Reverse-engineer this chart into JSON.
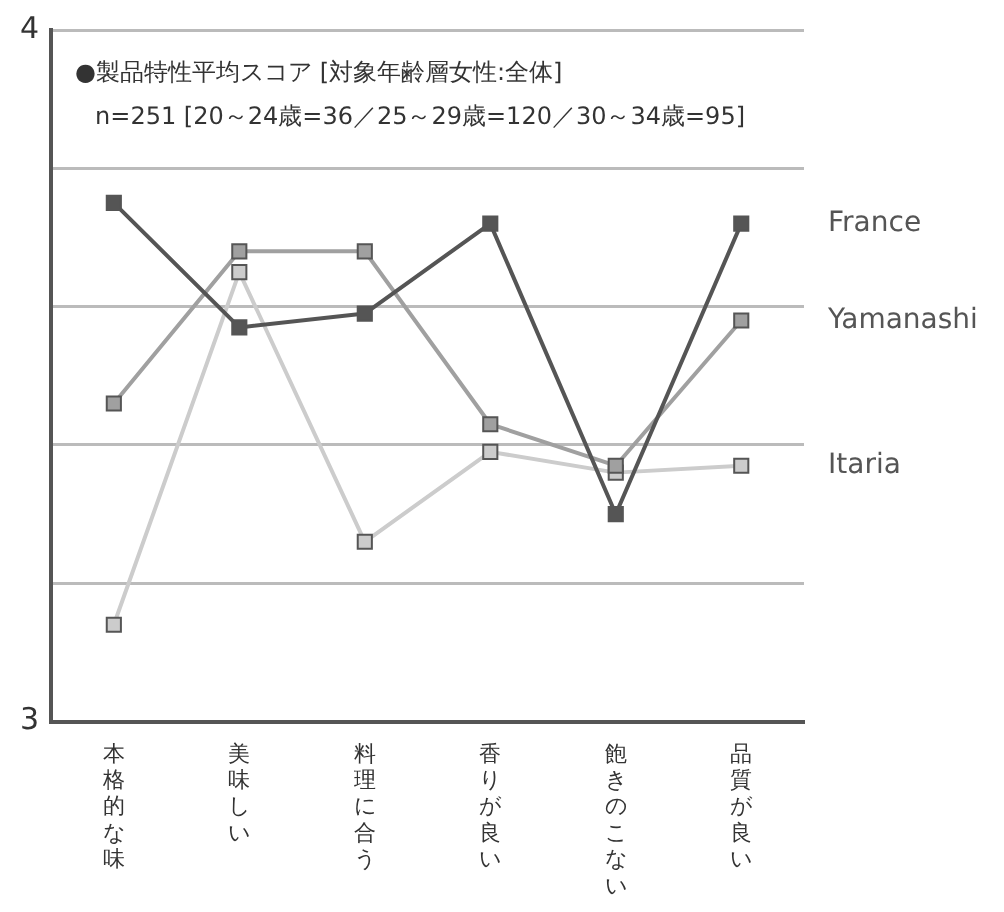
{
  "chart_data": {
    "type": "line",
    "title": "●製品特性平均スコア [対象年齢層女性:全体]",
    "subtitle": "n=251 [20～24歳=36／25～29歳=120／30～34歳=95]",
    "categories": [
      "本格的な味",
      "美味しい",
      "料理に合う",
      "香りが良い",
      "飽きのこない",
      "品質が良い"
    ],
    "series": [
      {
        "name": "France",
        "color": "#555555",
        "values": [
          3.75,
          3.57,
          3.59,
          3.72,
          3.3,
          3.72
        ]
      },
      {
        "name": "Yamanashi",
        "color": "#a0a0a0",
        "values": [
          3.46,
          3.68,
          3.68,
          3.43,
          3.37,
          3.58
        ]
      },
      {
        "name": "Itaria",
        "color": "#cccccc",
        "values": [
          3.14,
          3.65,
          3.26,
          3.39,
          3.36,
          3.37
        ]
      }
    ],
    "ylim": [
      3,
      4
    ],
    "yticks": [
      3,
      {
        "value": 3.2,
        "label": null
      },
      {
        "value": 3.4,
        "label": null
      },
      {
        "value": 3.6,
        "label": null
      },
      {
        "value": 3.8,
        "label": null
      },
      4
    ],
    "grid": "y",
    "legend": false,
    "marker": "square",
    "line_style": "solid"
  }
}
